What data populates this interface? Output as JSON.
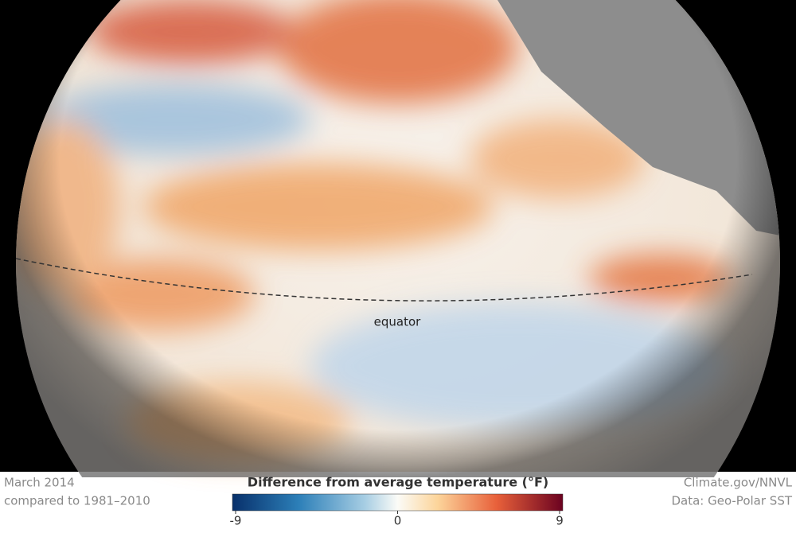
{
  "map": {
    "label": "equator"
  },
  "footer": {
    "left": [
      "March 2014",
      "compared to 1981–2010"
    ],
    "right": [
      "Climate.gov/NNVL",
      "Data: Geo-Polar SST"
    ]
  },
  "legend": {
    "title": "Difference from average temperature (°F)",
    "lim": [
      -9,
      9
    ],
    "ticks": [
      -9,
      0,
      9
    ]
  }
}
